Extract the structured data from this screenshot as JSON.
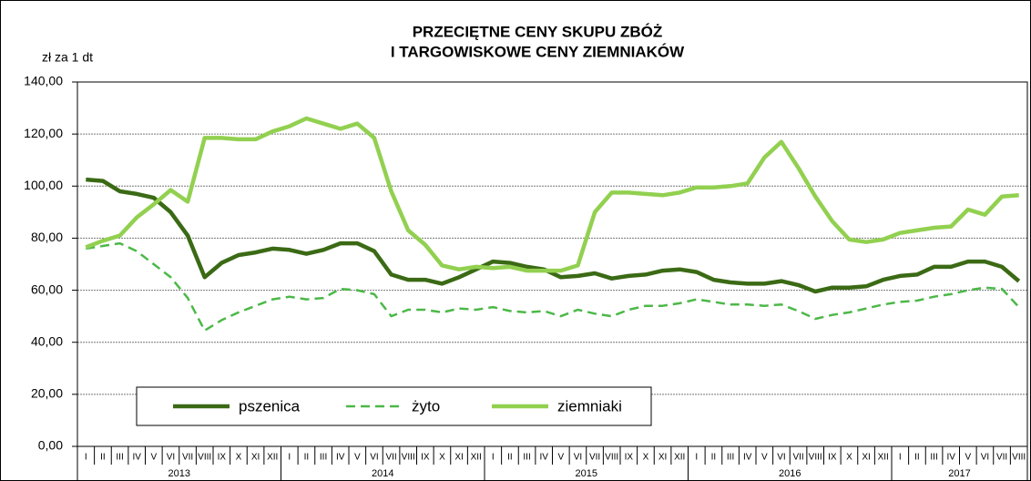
{
  "chart_data": {
    "type": "line",
    "title": [
      "PRZECIĘTNE CENY SKUPU ZBÓŻ",
      "I TARGOWISKOWE CENY ZIEMNIAKÓW"
    ],
    "y_label": "zł za 1 dt",
    "categories": [
      "I",
      "II",
      "III",
      "IV",
      "V",
      "VI",
      "VII",
      "VIII",
      "IX",
      "X",
      "XI",
      "XII",
      "I",
      "II",
      "III",
      "IV",
      "V",
      "VI",
      "VII",
      "VIII",
      "IX",
      "X",
      "XI",
      "XII",
      "I",
      "II",
      "III",
      "IV",
      "V",
      "VI",
      "VII",
      "VIII",
      "IX",
      "X",
      "XI",
      "XII",
      "I",
      "II",
      "III",
      "IV",
      "V",
      "VI",
      "VII",
      "VIII",
      "IX",
      "X",
      "XI",
      "XII",
      "I",
      "II",
      "III",
      "IV",
      "V",
      "VI",
      "VII",
      "VIII"
    ],
    "years": [
      "2013",
      "2014",
      "2015",
      "2016",
      "2017"
    ],
    "ylim": [
      0,
      140
    ],
    "yticks": [
      {
        "value": 0,
        "label": "0,00"
      },
      {
        "value": 20,
        "label": "20,00"
      },
      {
        "value": 40,
        "label": "40,00"
      },
      {
        "value": 60,
        "label": "60,00"
      },
      {
        "value": 80,
        "label": "80,00"
      },
      {
        "value": 100,
        "label": "100,00"
      },
      {
        "value": 120,
        "label": "120,00"
      },
      {
        "value": 140,
        "label": "140,00"
      }
    ],
    "grid": true,
    "series": [
      {
        "name": "pszenica",
        "color": "#3b6a15",
        "style": "solid",
        "values": [
          102.5,
          102,
          98,
          97,
          95.5,
          90,
          81,
          65,
          70.5,
          73.5,
          74.5,
          76,
          75.5,
          74,
          75.5,
          78,
          78,
          75,
          66,
          64,
          64,
          62.5,
          65,
          68,
          71,
          70.5,
          69,
          68,
          65,
          65.5,
          66.5,
          64.5,
          65.5,
          66,
          67.5,
          68,
          67,
          64,
          63,
          62.5,
          62.5,
          63.5,
          62,
          59.5,
          61,
          61,
          61.5,
          64,
          65.5,
          66,
          69,
          69,
          71,
          71,
          69,
          63.5
        ]
      },
      {
        "name": "żyto",
        "color": "#4cb848",
        "style": "dashed",
        "values": [
          76,
          77,
          78,
          75,
          70,
          65,
          57,
          44.5,
          48.5,
          51.5,
          54,
          56.5,
          57.5,
          56.5,
          57,
          60.5,
          60,
          58.5,
          50,
          52.5,
          52.5,
          51.5,
          53,
          52.5,
          53.5,
          52,
          51.5,
          52,
          50,
          52.5,
          51,
          50,
          52.5,
          54,
          54,
          55,
          56.5,
          55.5,
          54.5,
          54.5,
          54,
          54.5,
          52,
          49,
          50.5,
          51.5,
          53,
          54.5,
          55.5,
          56,
          57.5,
          58.5,
          60,
          61,
          60.5,
          53.5
        ]
      },
      {
        "name": "ziemniaki",
        "color": "#92d050",
        "style": "solid",
        "values": [
          76.5,
          79,
          81,
          88,
          93,
          98.5,
          94,
          118.5,
          118.5,
          118,
          118,
          121,
          123,
          126,
          124,
          122,
          124,
          118.5,
          98,
          83,
          77.5,
          69.5,
          68,
          69,
          68.5,
          69,
          67.5,
          67.5,
          67.5,
          69.5,
          90,
          97.5,
          97.5,
          97,
          96.5,
          97.5,
          99.5,
          99.5,
          100,
          101,
          111,
          117,
          107,
          96,
          86.5,
          79.5,
          78.5,
          79.5,
          82,
          83,
          84,
          84.5,
          91,
          89,
          96,
          96.5
        ]
      }
    ]
  }
}
